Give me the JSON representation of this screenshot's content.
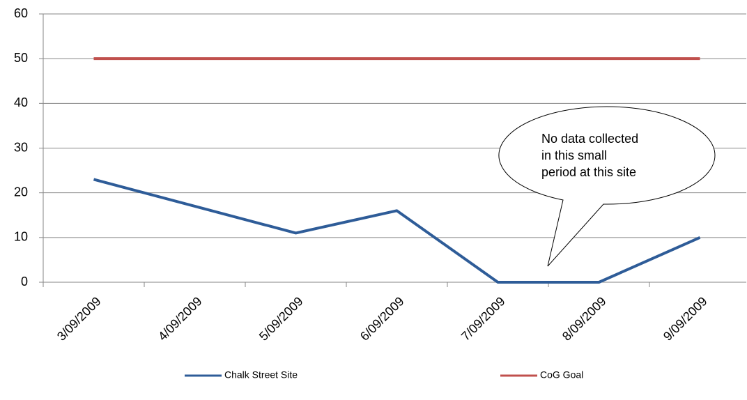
{
  "chart_data": {
    "type": "line",
    "categories": [
      "3/09/2009",
      "4/09/2009",
      "5/09/2009",
      "6/09/2009",
      "7/09/2009",
      "8/09/2009",
      "9/09/2009"
    ],
    "series": [
      {
        "name": "Chalk Street Site",
        "color": "#2e5c98",
        "values": [
          23,
          17,
          11,
          16,
          0,
          0,
          10
        ]
      },
      {
        "name": "CoG Goal",
        "color": "#c0504d",
        "values": [
          50,
          50,
          50,
          50,
          50,
          50,
          50
        ]
      }
    ],
    "ylim": [
      0,
      60
    ],
    "yticks": [
      0,
      10,
      20,
      30,
      40,
      50,
      60
    ],
    "grid": true,
    "legend": "bottom",
    "annotation": [
      "No data collected",
      "in this small",
      "period at this site"
    ]
  }
}
